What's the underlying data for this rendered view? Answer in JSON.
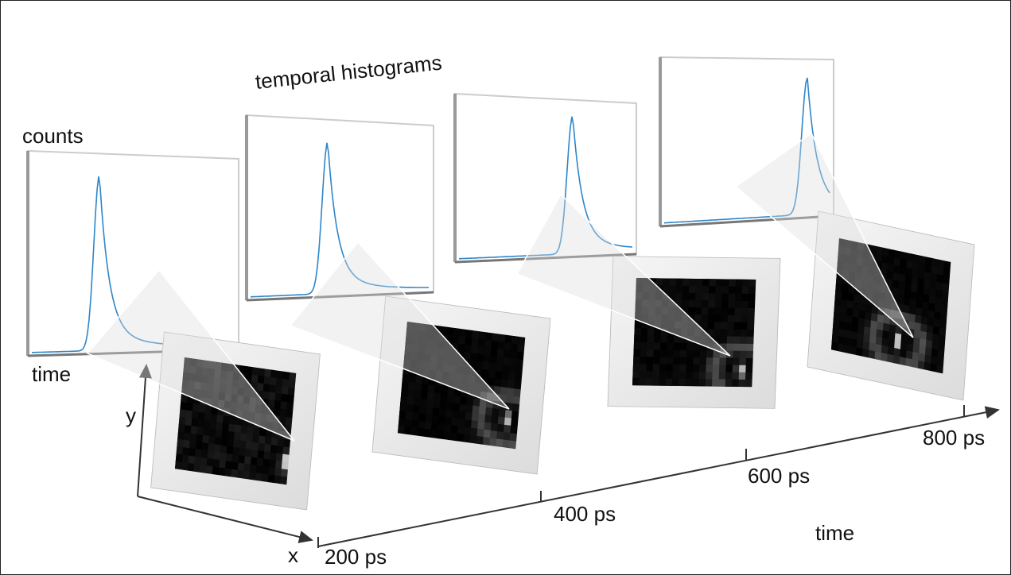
{
  "title": "temporal histograms",
  "histogram_axes": {
    "y_label": "counts",
    "x_label": "time"
  },
  "image_axes": {
    "y_label": "y",
    "x_label": "x"
  },
  "time_axis": {
    "ticks": [
      "200 ps",
      "400 ps",
      "600 ps",
      "800 ps"
    ],
    "label": "time"
  }
}
